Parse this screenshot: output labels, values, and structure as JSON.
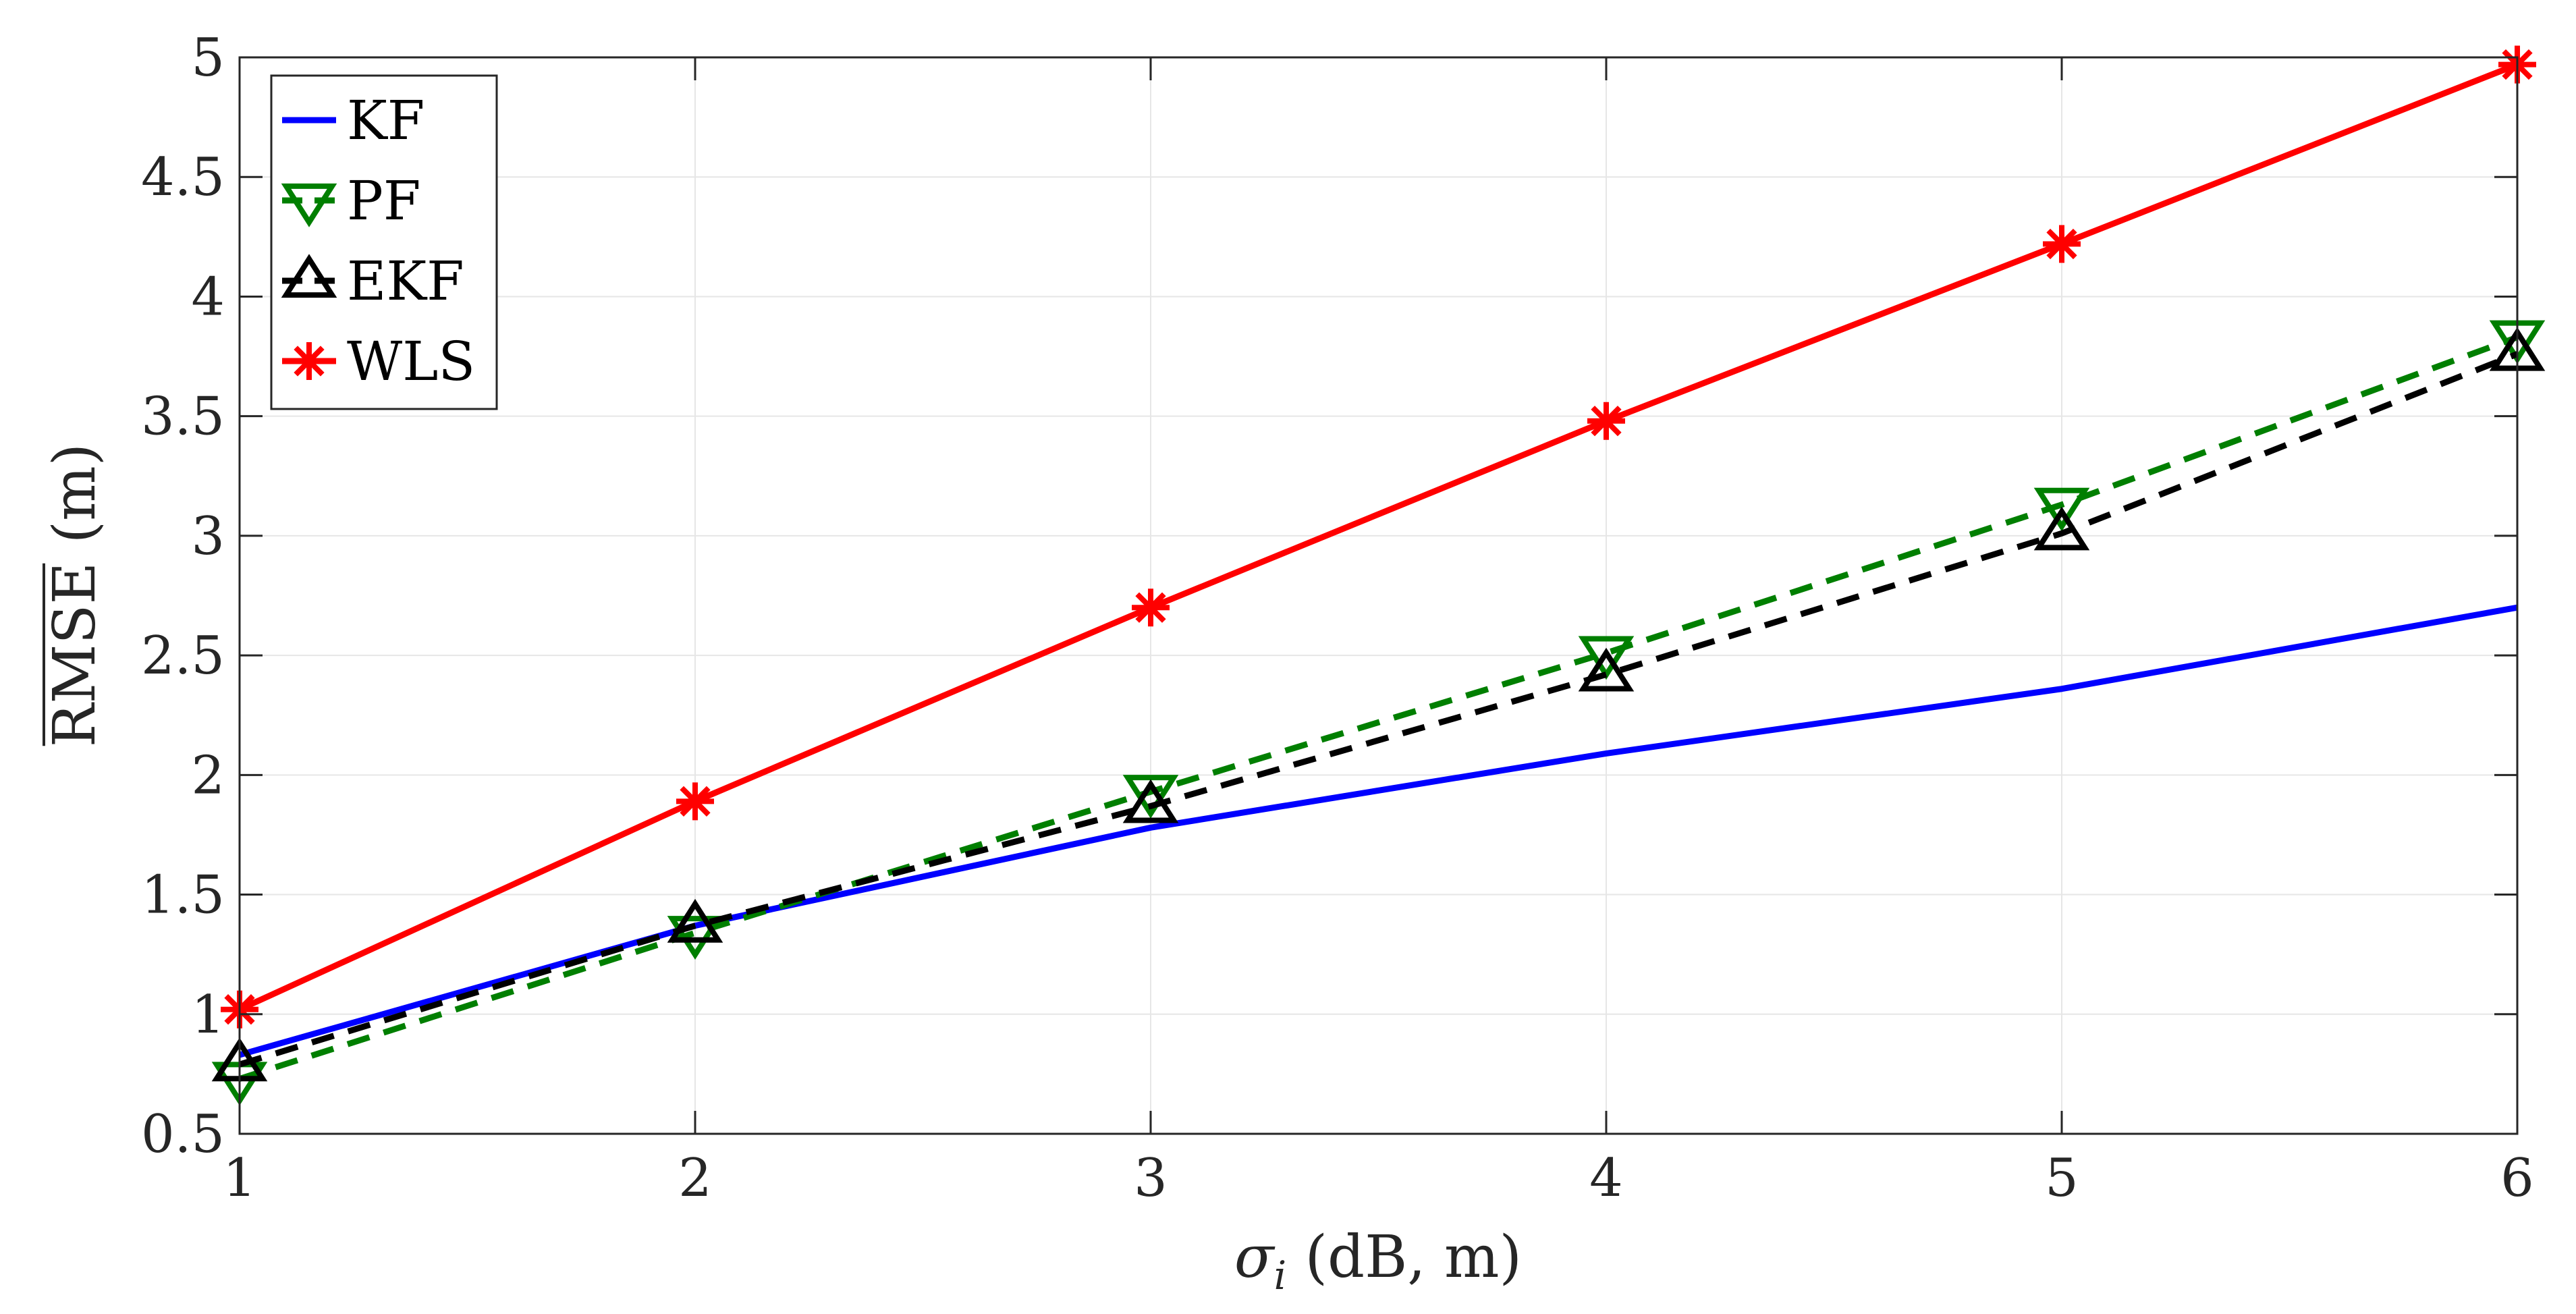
{
  "chart_data": {
    "type": "line",
    "xlabel": "σ",
    "xlabel_sub": "i",
    "xlabel_rest": " (dB, m)",
    "ylabel": "RMSE",
    "ylabel_rest": " (m)",
    "xlim": [
      1,
      6
    ],
    "ylim": [
      0.5,
      5
    ],
    "xticks": [
      1,
      2,
      3,
      4,
      5,
      6
    ],
    "yticks": [
      0.5,
      1,
      1.5,
      2,
      2.5,
      3,
      3.5,
      4,
      4.5,
      5
    ],
    "xtick_labels": [
      "1",
      "2",
      "3",
      "4",
      "5",
      "6"
    ],
    "ytick_labels": [
      "0.5",
      "1",
      "1.5",
      "2",
      "2.5",
      "3",
      "3.5",
      "4",
      "4.5",
      "5"
    ],
    "grid": true,
    "legend_position": "top-left",
    "x": [
      1,
      2,
      3,
      4,
      5,
      6
    ],
    "series": [
      {
        "name": "KF",
        "values": [
          0.83,
          1.37,
          1.78,
          2.09,
          2.36,
          2.7
        ],
        "color": "#0000ff",
        "dash": "solid",
        "marker": "none"
      },
      {
        "name": "PF",
        "values": [
          0.73,
          1.34,
          1.93,
          2.51,
          3.13,
          3.83
        ],
        "color": "#007f00",
        "dash": "dashed",
        "marker": "triangle-down"
      },
      {
        "name": "EKF",
        "values": [
          0.79,
          1.37,
          1.87,
          2.42,
          3.01,
          3.76
        ],
        "color": "#000000",
        "dash": "dashed",
        "marker": "triangle-up"
      },
      {
        "name": "WLS",
        "values": [
          1.02,
          1.89,
          2.7,
          3.48,
          4.22,
          4.97
        ],
        "color": "#ff0000",
        "dash": "solid",
        "marker": "asterisk"
      }
    ]
  }
}
